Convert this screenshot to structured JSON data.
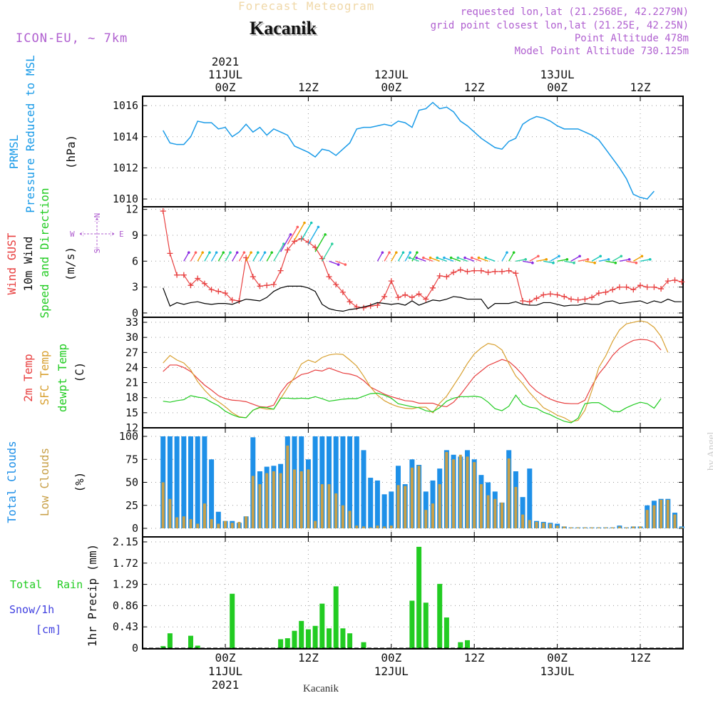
{
  "header": {
    "forecast_title": "Forecast Meteogram",
    "station": "Kacanik",
    "model": "ICON-EU, ~ 7km",
    "requested": "requested lon,lat (21.2568E, 42.2279N)",
    "grid_point": "grid point closest lon,lat (21.25E, 42.25N)",
    "point_altitude": "Point Altitude 478m",
    "model_altitude": "Model Point Altitude 730.125m",
    "credit": "by Angel",
    "footer_station": "Kacanik"
  },
  "time_axis": {
    "hours_total": 66,
    "ticks": [
      {
        "h": 10,
        "label": "00Z",
        "date": "11JUL",
        "year": "2021"
      },
      {
        "h": 22,
        "label": "12Z",
        "date": "",
        "year": ""
      },
      {
        "h": 34,
        "label": "00Z",
        "date": "12JUL",
        "year": ""
      },
      {
        "h": 46,
        "label": "12Z",
        "date": "",
        "year": ""
      },
      {
        "h": 58,
        "label": "00Z",
        "date": "13JUL",
        "year": ""
      },
      {
        "h": 70,
        "label": "12Z",
        "date": "",
        "year": ""
      }
    ]
  },
  "panels": {
    "pressure": {
      "labels": [
        "PRMSL",
        "Pressure Reduced to MSL",
        "(hPa)"
      ]
    },
    "wind": {
      "labels": [
        "Wind GUST",
        "10m Wind",
        "Speed and Direction",
        "(m/s)"
      ],
      "compass": {
        "n": "N",
        "s": "S",
        "e": "E",
        "w": "W"
      }
    },
    "temp": {
      "labels": [
        "2m Temp",
        "SFC Temp",
        "dewpt Temp",
        "(C)"
      ]
    },
    "clouds": {
      "labels": [
        "Total Clouds",
        "Low Clouds",
        "(%)"
      ]
    },
    "precip": {
      "labels": [
        "Total",
        "Rain",
        "Snow/1h",
        "[cm]",
        "1hr Precip (mm)"
      ]
    }
  },
  "colors": {
    "pressure": "#1a9be8",
    "gust": "#e84040",
    "wind": "#000000",
    "temp2m": "#e84040",
    "sfc": "#d8a030",
    "dewpt": "#22cc22",
    "total_clouds": "#1e90e8",
    "low_clouds": "#c8a048",
    "rain": "#22cc22",
    "label_purple": "#b060d0"
  },
  "chart_data": [
    {
      "type": "line",
      "title": "PRMSL",
      "ylabel": "(hPa)",
      "ylim": [
        1009.5,
        1016.6
      ],
      "yticks": [
        1010,
        1012,
        1014,
        1016
      ],
      "x_start": 1,
      "x_step": 1,
      "series": [
        {
          "name": "PRMSL",
          "values": [
            1014.4,
            1013.6,
            1013.5,
            1013.5,
            1014.0,
            1015.0,
            1014.9,
            1014.9,
            1014.5,
            1014.6,
            1014.0,
            1014.3,
            1014.8,
            1014.3,
            1014.6,
            1014.1,
            1014.5,
            1014.3,
            1014.1,
            1013.4,
            1013.2,
            1013.0,
            1012.7,
            1013.2,
            1013.1,
            1012.8,
            1013.2,
            1013.6,
            1014.5,
            1014.6,
            1014.6,
            1014.7,
            1014.8,
            1014.7,
            1015.0,
            1014.9,
            1014.6,
            1015.7,
            1015.8,
            1016.2,
            1015.8,
            1015.9,
            1015.6,
            1015.0,
            1014.7,
            1014.3,
            1013.9,
            1013.6,
            1013.3,
            1013.2,
            1013.7,
            1013.9,
            1014.8,
            1015.1,
            1015.3,
            1015.2,
            1015.0,
            1014.7,
            1014.5,
            1014.5,
            1014.5,
            1014.3,
            1014.1,
            1013.8,
            1013.2,
            1012.6,
            1012.0,
            1011.3,
            1010.3,
            1010.1,
            1010.0,
            1010.5
          ]
        }
      ]
    },
    {
      "type": "line",
      "title": "Wind",
      "ylabel": "(m/s)",
      "ylim": [
        -0.5,
        12.3
      ],
      "yticks": [
        0,
        3,
        6,
        9,
        12
      ],
      "x_start": 1,
      "x_step": 1,
      "series": [
        {
          "name": "Wind GUST",
          "values": [
            11.8,
            6.9,
            4.4,
            4.4,
            3.2,
            4.0,
            3.4,
            2.7,
            2.5,
            2.3,
            1.5,
            1.4,
            6.4,
            4.2,
            3.1,
            3.2,
            3.3,
            4.9,
            7.3,
            8.3,
            8.6,
            8.2,
            7.6,
            6.3,
            4.2,
            3.3,
            2.4,
            1.3,
            0.7,
            0.6,
            0.8,
            0.9,
            1.9,
            3.7,
            1.8,
            2.1,
            1.8,
            2.2,
            1.6,
            2.9,
            4.3,
            4.2,
            4.7,
            5.0,
            4.8,
            4.9,
            4.9,
            4.7,
            4.8,
            4.8,
            4.9,
            4.6,
            1.4,
            1.3,
            1.7,
            2.1,
            2.2,
            2.1,
            1.9,
            1.6,
            1.5,
            1.6,
            1.8,
            2.3,
            2.4,
            2.7,
            3.0,
            3.0,
            2.7,
            3.2,
            3.0,
            3.0,
            2.8,
            3.7,
            3.8,
            3.6
          ]
        },
        {
          "name": "10m Wind",
          "values": [
            2.9,
            0.8,
            1.2,
            1.0,
            1.2,
            1.3,
            1.1,
            1.0,
            1.1,
            1.1,
            1.0,
            1.3,
            1.6,
            1.5,
            1.4,
            1.8,
            2.5,
            2.9,
            3.1,
            3.1,
            3.1,
            2.9,
            2.5,
            1.0,
            0.5,
            0.3,
            0.2,
            0.4,
            0.5,
            0.7,
            0.9,
            1.2,
            1.1,
            1.0,
            1.1,
            0.9,
            1.4,
            0.9,
            1.2,
            1.5,
            1.4,
            1.6,
            1.9,
            1.8,
            1.6,
            1.6,
            1.6,
            0.5,
            1.1,
            1.1,
            1.1,
            1.3,
            1.0,
            0.9,
            0.9,
            1.2,
            1.2,
            1.0,
            0.8,
            0.9,
            0.9,
            1.1,
            1.0,
            1.0,
            1.3,
            1.4,
            1.1,
            1.2,
            1.3,
            1.4,
            1.1,
            1.4,
            1.2,
            1.6,
            1.3,
            1.3
          ]
        }
      ]
    },
    {
      "type": "line",
      "title": "Temperature",
      "ylabel": "(C)",
      "ylim": [
        12,
        34
      ],
      "yticks": [
        12,
        15,
        18,
        21,
        24,
        27,
        30,
        33
      ],
      "x_start": 1,
      "x_step": 1,
      "series": [
        {
          "name": "2m Temp",
          "values": [
            23.2,
            24.5,
            24.5,
            24.0,
            23.2,
            21.8,
            20.5,
            19.5,
            18.4,
            17.8,
            17.5,
            17.4,
            17.2,
            16.7,
            16.2,
            16.1,
            16.5,
            19.0,
            20.8,
            21.7,
            22.6,
            22.9,
            23.5,
            23.3,
            23.9,
            23.4,
            22.9,
            22.7,
            22.3,
            21.4,
            20.1,
            19.4,
            18.7,
            18.2,
            17.8,
            17.4,
            17.3,
            16.9,
            16.9,
            16.9,
            16.4,
            16.2,
            17.1,
            18.6,
            20.4,
            22.2,
            23.3,
            24.4,
            25.0,
            25.6,
            25.2,
            24.0,
            22.5,
            20.6,
            19.3,
            18.4,
            17.7,
            17.2,
            16.9,
            16.8,
            16.8,
            17.5,
            20.3,
            22.7,
            24.4,
            26.4,
            27.8,
            28.7,
            29.4,
            29.6,
            29.5,
            29.0,
            27.5
          ]
        },
        {
          "name": "SFC Temp",
          "values": [
            24.9,
            26.4,
            25.5,
            24.9,
            23.5,
            21.2,
            19.5,
            18.1,
            17.2,
            16.2,
            15.0,
            14.2,
            14.0,
            15.5,
            16.0,
            15.7,
            15.7,
            17.8,
            20.0,
            22.1,
            24.7,
            25.5,
            25.0,
            26.0,
            26.5,
            26.7,
            26.6,
            25.5,
            24.3,
            22.3,
            20.1,
            18.5,
            17.4,
            16.7,
            16.2,
            15.9,
            15.8,
            16.1,
            16.1,
            15.0,
            16.9,
            18.3,
            20.4,
            22.5,
            24.8,
            26.7,
            27.9,
            28.8,
            28.5,
            27.5,
            24.8,
            22.3,
            20.8,
            19.0,
            17.5,
            16.0,
            15.3,
            14.5,
            14.0,
            13.2,
            13.5,
            15.5,
            19.4,
            24.0,
            26.3,
            29.2,
            31.5,
            32.7,
            33.0,
            33.3,
            33.0,
            32.0,
            30.2,
            27.0
          ]
        },
        {
          "name": "dewpt Temp",
          "values": [
            17.3,
            17.1,
            17.4,
            17.6,
            18.4,
            18.1,
            17.9,
            17.1,
            16.4,
            15.3,
            14.6,
            14.1,
            14.0,
            15.5,
            16.1,
            16.0,
            15.7,
            17.9,
            17.9,
            17.8,
            17.9,
            17.8,
            18.2,
            17.8,
            17.3,
            17.5,
            17.7,
            17.8,
            17.8,
            18.3,
            18.8,
            18.9,
            18.5,
            17.9,
            16.8,
            16.5,
            16.2,
            16.0,
            15.4,
            15.2,
            16.0,
            17.3,
            17.9,
            18.2,
            18.2,
            18.3,
            18.1,
            17.1,
            15.8,
            15.4,
            16.3,
            18.5,
            16.7,
            16.1,
            15.9,
            15.1,
            14.6,
            13.9,
            13.3,
            13.0,
            13.9,
            16.8,
            17.0,
            17.0,
            16.2,
            15.3,
            15.2,
            16.0,
            16.6,
            17.1,
            16.8,
            15.9,
            17.8
          ]
        }
      ]
    },
    {
      "type": "bar",
      "title": "Clouds",
      "ylabel": "(%)",
      "ylim": [
        0,
        100
      ],
      "yticks": [
        0,
        25,
        50,
        75,
        100
      ],
      "x_start": 1,
      "x_step": 1,
      "series": [
        {
          "name": "Total Clouds",
          "values": [
            100,
            100,
            100,
            100,
            100,
            100,
            100,
            75,
            18,
            8,
            8,
            6,
            13,
            99,
            62,
            67,
            68,
            70,
            100,
            100,
            100,
            75,
            100,
            100,
            100,
            100,
            100,
            100,
            100,
            85,
            55,
            52,
            37,
            40,
            68,
            48,
            75,
            69,
            40,
            52,
            65,
            85,
            80,
            78,
            85,
            75,
            58,
            50,
            40,
            28,
            85,
            62,
            34,
            65,
            8,
            7,
            6,
            5,
            2,
            1,
            1,
            1,
            1,
            1,
            1,
            1,
            3,
            1,
            2,
            2,
            25,
            30,
            32,
            32,
            17,
            2
          ]
        },
        {
          "name": "Low Clouds",
          "values": [
            50,
            32,
            12,
            13,
            10,
            5,
            27,
            10,
            5,
            8,
            6,
            7,
            13,
            57,
            48,
            60,
            62,
            60,
            90,
            64,
            62,
            64,
            8,
            48,
            48,
            38,
            25,
            19,
            3,
            2,
            1,
            3,
            2,
            3,
            47,
            46,
            66,
            68,
            20,
            27,
            48,
            83,
            75,
            80,
            78,
            72,
            48,
            36,
            32,
            28,
            76,
            45,
            15,
            9,
            7,
            6,
            5,
            3,
            2,
            1,
            1,
            1,
            1,
            1,
            1,
            1,
            2,
            1,
            2,
            2,
            20,
            25,
            31,
            31,
            15,
            1
          ]
        }
      ]
    },
    {
      "type": "bar",
      "title": "1hr Precip",
      "ylabel": "1hr Precip (mm)",
      "ylim": [
        0,
        2.15
      ],
      "yticks": [
        0,
        0.43,
        0.86,
        1.29,
        1.72,
        2.15
      ],
      "x_start": 1,
      "x_step": 1,
      "series": [
        {
          "name": "Total Rain",
          "values": [
            0.04,
            0.3,
            0,
            0,
            0.25,
            0.05,
            0,
            0,
            0,
            0,
            1.1,
            0,
            0,
            0,
            0,
            0,
            0,
            0.18,
            0.2,
            0.35,
            0.55,
            0.38,
            0.45,
            0.9,
            0.4,
            1.25,
            0.4,
            0.3,
            0,
            0.12,
            0,
            0,
            0,
            0,
            0,
            0,
            0.96,
            2.05,
            0.92,
            0,
            1.3,
            0.62,
            0,
            0.12,
            0.16,
            0,
            0,
            0,
            0,
            0,
            0,
            0,
            0,
            0,
            0,
            0,
            0,
            0,
            0,
            0,
            0,
            0,
            0,
            0,
            0,
            0,
            0,
            0,
            0,
            0,
            0,
            0,
            0,
            0
          ]
        }
      ]
    }
  ]
}
